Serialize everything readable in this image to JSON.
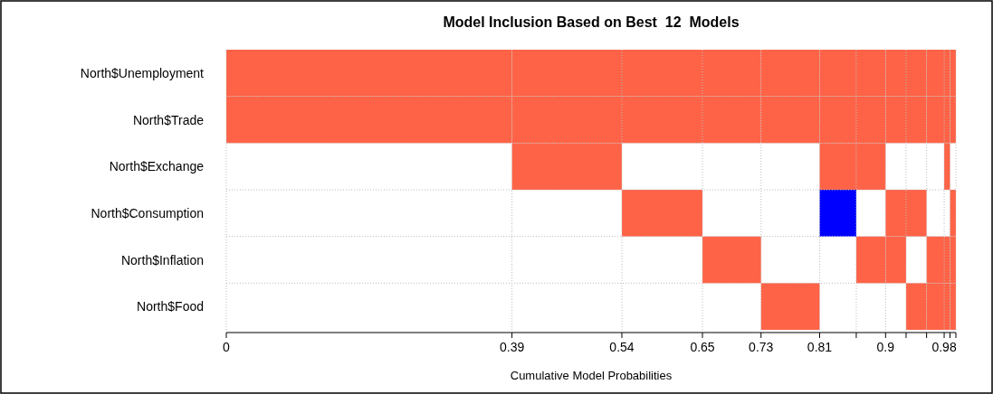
{
  "chart_data": {
    "type": "bar",
    "orientation": "horizontal",
    "title": "Model Inclusion Based on Best  12  Models",
    "xlabel": "Cumulative Model Probabilities",
    "categories": [
      "North$Unemployment",
      "North$Trade",
      "North$Exchange",
      "North$Consumption",
      "North$Inflation",
      "North$Food"
    ],
    "series": [
      {
        "base": [
          0,
          0,
          null,
          null,
          null,
          null
        ],
        "values": [
          0.39,
          0.39,
          null,
          null,
          null,
          null
        ],
        "colors": [
          "#ff6347",
          "#ff6347",
          null,
          null,
          null,
          null
        ]
      },
      {
        "base": [
          0.39,
          0.39,
          0.39,
          null,
          null,
          null
        ],
        "values": [
          0.15,
          0.15,
          0.15,
          null,
          null,
          null
        ],
        "colors": [
          "#ff6347",
          "#ff6347",
          "#ff6347",
          null,
          null,
          null
        ]
      },
      {
        "base": [
          0.54,
          0.54,
          null,
          0.54,
          null,
          null
        ],
        "values": [
          0.11,
          0.11,
          null,
          0.11,
          null,
          null
        ],
        "colors": [
          "#ff6347",
          "#ff6347",
          null,
          "#ff6347",
          null,
          null
        ]
      },
      {
        "base": [
          0.65,
          0.65,
          null,
          null,
          0.65,
          null
        ],
        "values": [
          0.08,
          0.08,
          null,
          null,
          0.08,
          null
        ],
        "colors": [
          "#ff6347",
          "#ff6347",
          null,
          null,
          "#ff6347",
          null
        ]
      },
      {
        "base": [
          0.73,
          0.73,
          null,
          null,
          null,
          0.73
        ],
        "values": [
          0.08,
          0.08,
          null,
          null,
          null,
          0.08
        ],
        "colors": [
          "#ff6347",
          "#ff6347",
          null,
          null,
          null,
          "#ff6347"
        ]
      },
      {
        "base": [
          0.81,
          0.81,
          0.81,
          0.81,
          null,
          null
        ],
        "values": [
          0.05,
          0.05,
          0.05,
          0.05,
          null,
          null
        ],
        "colors": [
          "#ff6347",
          "#ff6347",
          "#ff6347",
          "#0000ff",
          null,
          null
        ]
      },
      {
        "base": [
          0.86,
          0.86,
          0.86,
          null,
          0.86,
          null
        ],
        "values": [
          0.04,
          0.04,
          0.04,
          null,
          0.04,
          null
        ],
        "colors": [
          "#ff6347",
          "#ff6347",
          "#ff6347",
          null,
          "#ff6347",
          null
        ]
      },
      {
        "base": [
          0.9,
          0.9,
          null,
          0.9,
          0.9,
          null
        ],
        "values": [
          0.028,
          0.028,
          null,
          0.028,
          0.028,
          null
        ],
        "colors": [
          "#ff6347",
          "#ff6347",
          null,
          "#ff6347",
          "#ff6347",
          null
        ]
      },
      {
        "base": [
          0.928,
          0.928,
          null,
          0.928,
          null,
          0.928
        ],
        "values": [
          0.028,
          0.028,
          null,
          0.028,
          null,
          0.028
        ],
        "colors": [
          "#ff6347",
          "#ff6347",
          null,
          "#ff6347",
          null,
          "#ff6347"
        ]
      },
      {
        "base": [
          0.956,
          0.956,
          null,
          null,
          0.956,
          0.956
        ],
        "values": [
          0.024,
          0.024,
          null,
          null,
          0.024,
          0.024
        ],
        "colors": [
          "#ff6347",
          "#ff6347",
          null,
          null,
          "#ff6347",
          "#ff6347"
        ]
      },
      {
        "base": [
          0.98,
          0.98,
          0.98,
          null,
          0.98,
          0.98
        ],
        "values": [
          0.008,
          0.008,
          0.008,
          null,
          0.008,
          0.008
        ],
        "colors": [
          "#ff6347",
          "#ff6347",
          "#ff6347",
          null,
          "#ff6347",
          "#ff6347"
        ]
      },
      {
        "base": [
          0.988,
          0.988,
          null,
          0.988,
          0.988,
          0.988
        ],
        "values": [
          0.008,
          0.008,
          null,
          0.008,
          0.008,
          0.008
        ],
        "colors": [
          "#ff6347",
          "#ff6347",
          null,
          "#ff6347",
          "#ff6347",
          "#ff6347"
        ]
      }
    ],
    "xlim": [
      0,
      0.996
    ],
    "xticks": [
      0,
      0.39,
      0.54,
      0.65,
      0.73,
      0.81,
      {
        "value": 0.86,
        "label": null
      },
      0.9,
      {
        "value": 0.928,
        "label": null
      },
      {
        "value": 0.956,
        "label": null
      },
      0.98,
      {
        "value": 0.988,
        "label": null
      },
      {
        "value": 0.996,
        "label": null
      }
    ],
    "grid": true
  }
}
